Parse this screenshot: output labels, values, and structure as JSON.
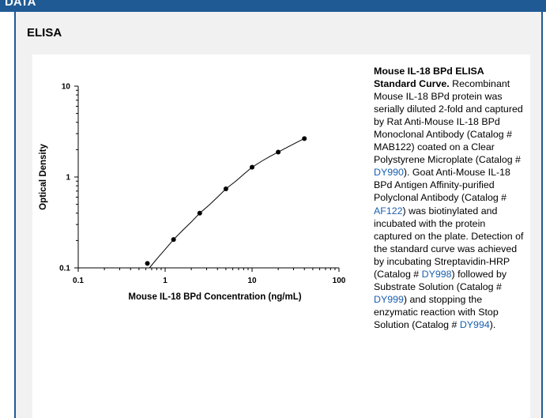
{
  "header": {
    "title": "DATA"
  },
  "panel": {
    "title": "ELISA"
  },
  "chart_data": {
    "type": "line",
    "xscale": "log",
    "yscale": "log",
    "xlim": [
      0.1,
      100
    ],
    "ylim": [
      0.1,
      10
    ],
    "xticks": [
      "0.1",
      "1",
      "10",
      "100"
    ],
    "yticks": [
      "0.1",
      "1",
      "10"
    ],
    "xlabel": "Mouse IL-18 BPd Concentration (ng/mL)",
    "ylabel": "Optical Density",
    "grid": false,
    "points": {
      "x": [
        0.625,
        1.25,
        2.5,
        5,
        10,
        20,
        40
      ],
      "y": [
        0.112,
        0.205,
        0.4,
        0.74,
        1.28,
        1.88,
        2.65
      ]
    },
    "curve": {
      "x": [
        0.66,
        0.8,
        1.0,
        1.25,
        1.6,
        2.0,
        2.5,
        3.2,
        4.0,
        5.0,
        6.5,
        8.0,
        10,
        13,
        16,
        20,
        26,
        32,
        40
      ],
      "y": [
        0.1,
        0.125,
        0.16,
        0.205,
        0.26,
        0.32,
        0.4,
        0.49,
        0.6,
        0.74,
        0.9,
        1.07,
        1.28,
        1.5,
        1.68,
        1.88,
        2.15,
        2.38,
        2.65
      ]
    }
  },
  "description": {
    "title": "Mouse IL-18 BPd ELISA Standard Curve.",
    "segments": [
      {
        "text": " Recombinant Mouse IL-18 BPd protein was serially diluted 2-fold and captured by Rat Anti-Mouse IL-18 BPd Monoclonal Antibody (Catalog # MAB122) coated on a Clear Polystyrene Microplate (Catalog # ",
        "link": false
      },
      {
        "text": "DY990",
        "link": true
      },
      {
        "text": "). Goat Anti-Mouse IL-18 BPd Antigen Affinity-purified Polyclonal Antibody (Catalog # ",
        "link": false
      },
      {
        "text": "AF122",
        "link": true
      },
      {
        "text": ") was biotinylated and incubated with the protein captured on the plate. Detection of the standard curve was achieved by incubating Streptavidin-HRP (Catalog # ",
        "link": false
      },
      {
        "text": "DY998",
        "link": true
      },
      {
        "text": ") followed by Substrate Solution (Catalog # ",
        "link": false
      },
      {
        "text": "DY999",
        "link": true
      },
      {
        "text": ") and stopping the enzymatic reaction with Stop Solution (Catalog # ",
        "link": false
      },
      {
        "text": "DY994",
        "link": true
      },
      {
        "text": ").",
        "link": false
      }
    ]
  },
  "colors": {
    "accent": "#1f5a94",
    "panel_bg": "#f1f1f1",
    "link": "#1a5fb0",
    "plot": "#000000"
  }
}
